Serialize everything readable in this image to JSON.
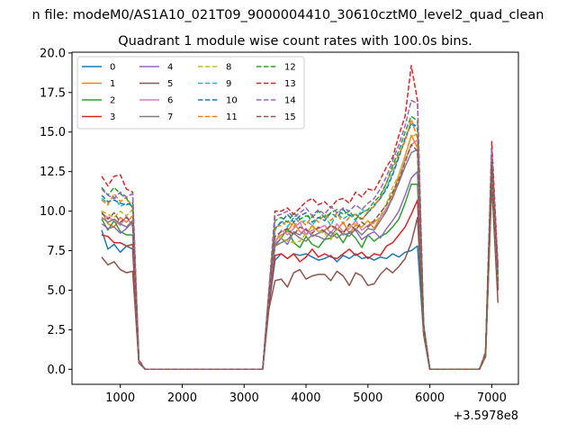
{
  "figure": {
    "suptitle": "n file: modeM0/AS1A10_021T09_9000004410_30610cztM0_level2_quad_clean",
    "axis_offset_label": "+3.5978e8"
  },
  "chart_data": {
    "type": "line",
    "title": "Quadrant 1 module wise count rates with 100.0s bins.",
    "xlabel": "",
    "ylabel": "",
    "xlim": [
      220,
      7430
    ],
    "ylim": [
      -0.95,
      20.05
    ],
    "x_offset": 359780000,
    "x_ticks": [
      1000,
      2000,
      3000,
      4000,
      5000,
      6000,
      7000
    ],
    "x_tick_labels": [
      "1000",
      "2000",
      "3000",
      "4000",
      "5000",
      "6000",
      "7000"
    ],
    "y_ticks": [
      0.0,
      2.5,
      5.0,
      7.5,
      10.0,
      12.5,
      15.0,
      17.5,
      20.0
    ],
    "y_tick_labels": [
      "0.0",
      "2.5",
      "5.0",
      "7.5",
      "10.0",
      "12.5",
      "15.0",
      "17.5",
      "20.0"
    ],
    "grid": false,
    "legend": {
      "placement": "top-left",
      "columns": 4
    },
    "x": [
      700,
      800,
      900,
      1000,
      1100,
      1200,
      1300,
      1400,
      1500,
      1600,
      1700,
      1800,
      1900,
      2000,
      2100,
      2200,
      2300,
      2400,
      2500,
      2600,
      2700,
      2800,
      2900,
      3000,
      3100,
      3200,
      3300,
      3400,
      3500,
      3600,
      3700,
      3800,
      3900,
      4000,
      4100,
      4200,
      4300,
      4400,
      4500,
      4600,
      4700,
      4800,
      4900,
      5000,
      5100,
      5200,
      5300,
      5400,
      5500,
      5600,
      5700,
      5800,
      5900,
      6000,
      6100,
      6200,
      6300,
      6400,
      6500,
      6600,
      6700,
      6800,
      6900,
      7000,
      7100
    ],
    "series": [
      {
        "name": "0",
        "color": "#1f77b4",
        "dash": "solid",
        "values": [
          8.8,
          7.6,
          7.9,
          7.4,
          7.8,
          7.6,
          0.5,
          0,
          0,
          0,
          0,
          0,
          0,
          0,
          0,
          0,
          0,
          0,
          0,
          0,
          0,
          0,
          0,
          0,
          0,
          0,
          0,
          4.0,
          6.9,
          7.3,
          7.0,
          7.3,
          7.2,
          7.3,
          7.1,
          6.9,
          7.0,
          7.2,
          6.8,
          7.2,
          7.0,
          7.3,
          7.0,
          7.1,
          6.9,
          7.1,
          7.0,
          7.3,
          7.1,
          7.4,
          7.5,
          7.8,
          2.2,
          0,
          0,
          0,
          0,
          0,
          0,
          0,
          0,
          0,
          0.8,
          12.1,
          5.0
        ]
      },
      {
        "name": "1",
        "color": "#ff7f0e",
        "dash": "solid",
        "values": [
          10.0,
          9.2,
          9.0,
          9.6,
          9.3,
          9.7,
          0.5,
          0,
          0,
          0,
          0,
          0,
          0,
          0,
          0,
          0,
          0,
          0,
          0,
          0,
          0,
          0,
          0,
          0,
          0,
          0,
          0,
          4.6,
          8.1,
          8.5,
          8.7,
          9.3,
          8.7,
          8.5,
          9.1,
          8.7,
          8.8,
          9.1,
          8.8,
          9.3,
          8.6,
          9.1,
          9.0,
          9.4,
          8.9,
          9.6,
          10.1,
          11.0,
          12.3,
          13.5,
          14.8,
          14.0,
          2.6,
          0,
          0,
          0,
          0,
          0,
          0,
          0,
          0,
          0,
          0.9,
          12.8,
          5.6
        ]
      },
      {
        "name": "2",
        "color": "#2ca02c",
        "dash": "solid",
        "values": [
          9.5,
          8.8,
          9.4,
          8.7,
          8.5,
          8.5,
          0.5,
          0,
          0,
          0,
          0,
          0,
          0,
          0,
          0,
          0,
          0,
          0,
          0,
          0,
          0,
          0,
          0,
          0,
          0,
          0,
          0,
          4.4,
          7.8,
          8.3,
          8.9,
          8.0,
          7.7,
          8.4,
          7.9,
          7.7,
          8.2,
          8.3,
          8.6,
          8.0,
          8.7,
          8.3,
          7.7,
          8.5,
          8.1,
          8.4,
          8.6,
          9.0,
          9.5,
          10.5,
          11.7,
          11.7,
          2.5,
          0,
          0,
          0,
          0,
          0,
          0,
          0,
          0,
          0,
          0.9,
          12.4,
          5.3
        ]
      },
      {
        "name": "3",
        "color": "#d62728",
        "dash": "solid",
        "values": [
          8.5,
          8.4,
          8.0,
          8.0,
          7.8,
          7.9,
          0.5,
          0,
          0,
          0,
          0,
          0,
          0,
          0,
          0,
          0,
          0,
          0,
          0,
          0,
          0,
          0,
          0,
          0,
          0,
          0,
          0,
          4.2,
          7.2,
          7.3,
          7.0,
          7.3,
          6.8,
          7.1,
          7.6,
          7.1,
          7.3,
          7.1,
          7.0,
          7.3,
          7.6,
          7.2,
          7.4,
          7.0,
          7.3,
          7.2,
          7.8,
          8.0,
          8.5,
          9.0,
          9.8,
          10.7,
          2.4,
          0,
          0,
          0,
          0,
          0,
          0,
          0,
          0,
          0,
          0.8,
          12.0,
          5.0
        ]
      },
      {
        "name": "4",
        "color": "#9467bd",
        "dash": "solid",
        "values": [
          9.2,
          8.9,
          9.0,
          8.6,
          8.9,
          9.3,
          0.5,
          0,
          0,
          0,
          0,
          0,
          0,
          0,
          0,
          0,
          0,
          0,
          0,
          0,
          0,
          0,
          0,
          0,
          0,
          0,
          0,
          4.5,
          7.9,
          8.3,
          7.9,
          8.7,
          8.5,
          8.9,
          8.4,
          8.6,
          8.7,
          8.4,
          8.9,
          8.5,
          8.6,
          8.8,
          8.2,
          8.5,
          8.7,
          8.3,
          8.9,
          9.4,
          10.0,
          11.0,
          12.1,
          12.5,
          2.5,
          0,
          0,
          0,
          0,
          0,
          0,
          0,
          0,
          0,
          0.9,
          12.6,
          5.5
        ]
      },
      {
        "name": "5",
        "color": "#8c564b",
        "dash": "solid",
        "values": [
          7.1,
          6.6,
          6.8,
          6.3,
          6.1,
          6.2,
          0.4,
          0,
          0,
          0,
          0,
          0,
          0,
          0,
          0,
          0,
          0,
          0,
          0,
          0,
          0,
          0,
          0,
          0,
          0,
          0,
          0,
          3.8,
          5.6,
          5.7,
          5.2,
          6.1,
          6.3,
          5.7,
          5.9,
          6.0,
          6.0,
          5.6,
          6.2,
          5.9,
          5.3,
          6.1,
          5.9,
          5.3,
          5.4,
          6.0,
          6.4,
          6.1,
          6.5,
          7.0,
          8.0,
          9.6,
          2.2,
          0,
          0,
          0,
          0,
          0,
          0,
          0,
          0,
          0,
          0.8,
          11.7,
          4.2
        ]
      },
      {
        "name": "6",
        "color": "#e377c2",
        "dash": "solid",
        "values": [
          9.8,
          9.6,
          9.4,
          9.1,
          9.7,
          9.0,
          0.5,
          0,
          0,
          0,
          0,
          0,
          0,
          0,
          0,
          0,
          0,
          0,
          0,
          0,
          0,
          0,
          0,
          0,
          0,
          0,
          0,
          4.6,
          8.0,
          8.8,
          8.5,
          8.9,
          9.3,
          8.5,
          8.8,
          8.9,
          9.1,
          8.6,
          9.2,
          8.7,
          8.9,
          9.4,
          8.8,
          9.1,
          9.3,
          9.6,
          10.2,
          10.8,
          11.9,
          13.2,
          14.2,
          14.5,
          2.6,
          0,
          0,
          0,
          0,
          0,
          0,
          0,
          0,
          0,
          0.9,
          13.5,
          5.7
        ]
      },
      {
        "name": "7",
        "color": "#7f7f7f",
        "dash": "solid",
        "values": [
          9.6,
          9.3,
          9.5,
          9.2,
          9.0,
          9.4,
          0.5,
          0,
          0,
          0,
          0,
          0,
          0,
          0,
          0,
          0,
          0,
          0,
          0,
          0,
          0,
          0,
          0,
          0,
          0,
          0,
          0,
          4.5,
          7.8,
          8.0,
          8.2,
          8.6,
          8.3,
          8.1,
          8.5,
          8.4,
          8.2,
          8.7,
          8.3,
          8.6,
          8.4,
          8.9,
          8.5,
          8.9,
          8.8,
          9.4,
          10.0,
          10.9,
          11.8,
          12.8,
          13.7,
          13.9,
          2.6,
          0,
          0,
          0,
          0,
          0,
          0,
          0,
          0,
          0,
          0.9,
          13.0,
          5.4
        ]
      },
      {
        "name": "8",
        "color": "#bcbd22",
        "dash": "dashed",
        "values": [
          10.0,
          9.8,
          9.6,
          10.0,
          9.7,
          10.1,
          0.5,
          0,
          0,
          0,
          0,
          0,
          0,
          0,
          0,
          0,
          0,
          0,
          0,
          0,
          0,
          0,
          0,
          0,
          0,
          0,
          0,
          4.7,
          8.4,
          8.3,
          8.1,
          8.0,
          8.1,
          8.6,
          9.0,
          8.7,
          8.6,
          8.2,
          8.9,
          8.6,
          9.1,
          9.2,
          9.0,
          9.4,
          9.2,
          9.7,
          10.5,
          11.5,
          12.3,
          13.5,
          14.7,
          14.9,
          2.6,
          0,
          0,
          0,
          0,
          0,
          0,
          0,
          0,
          0,
          0.9,
          13.0,
          5.8
        ]
      },
      {
        "name": "9",
        "color": "#17becf",
        "dash": "dashed",
        "values": [
          10.8,
          10.5,
          10.9,
          10.3,
          10.5,
          10.3,
          0.5,
          0,
          0,
          0,
          0,
          0,
          0,
          0,
          0,
          0,
          0,
          0,
          0,
          0,
          0,
          0,
          0,
          0,
          0,
          0,
          0,
          4.7,
          8.8,
          9.4,
          9.0,
          9.6,
          9.3,
          9.4,
          9.1,
          9.6,
          9.7,
          9.1,
          9.9,
          9.5,
          9.8,
          9.4,
          10.1,
          9.9,
          10.3,
          10.8,
          11.5,
          12.4,
          13.5,
          14.5,
          15.5,
          15.2,
          2.7,
          0,
          0,
          0,
          0,
          0,
          0,
          0,
          0,
          0,
          1.0,
          13.8,
          6.2
        ]
      },
      {
        "name": "10",
        "color": "#1f77b4",
        "dash": "dashed",
        "values": [
          11.0,
          10.6,
          10.7,
          10.5,
          10.4,
          10.6,
          0.5,
          0,
          0,
          0,
          0,
          0,
          0,
          0,
          0,
          0,
          0,
          0,
          0,
          0,
          0,
          0,
          0,
          0,
          0,
          0,
          0,
          4.8,
          8.9,
          9.3,
          9.8,
          9.3,
          9.7,
          9.9,
          9.3,
          9.6,
          9.4,
          9.9,
          9.6,
          10.1,
          9.7,
          9.8,
          9.5,
          9.9,
          10.4,
          10.8,
          11.4,
          12.3,
          13.4,
          14.6,
          15.6,
          15.3,
          2.7,
          0,
          0,
          0,
          0,
          0,
          0,
          0,
          0,
          0,
          1.0,
          13.6,
          6.4
        ]
      },
      {
        "name": "11",
        "color": "#ff7f0e",
        "dash": "dashed",
        "values": [
          10.7,
          10.4,
          11.1,
          10.6,
          10.9,
          10.2,
          0.5,
          0,
          0,
          0,
          0,
          0,
          0,
          0,
          0,
          0,
          0,
          0,
          0,
          0,
          0,
          0,
          0,
          0,
          0,
          0,
          0,
          4.8,
          9.0,
          9.1,
          9.4,
          9.0,
          9.5,
          9.1,
          9.7,
          9.3,
          9.8,
          9.4,
          9.9,
          9.2,
          9.6,
          9.8,
          9.4,
          10.0,
          10.3,
          10.9,
          11.8,
          12.7,
          13.6,
          14.4,
          15.8,
          14.6,
          2.7,
          0,
          0,
          0,
          0,
          0,
          0,
          0,
          0,
          0,
          1.0,
          13.4,
          6.1
        ]
      },
      {
        "name": "12",
        "color": "#2ca02c",
        "dash": "dashed",
        "values": [
          11.5,
          11.0,
          11.5,
          11.1,
          10.8,
          10.2,
          0.5,
          0,
          0,
          0,
          0,
          0,
          0,
          0,
          0,
          0,
          0,
          0,
          0,
          0,
          0,
          0,
          0,
          0,
          0,
          0,
          0,
          4.9,
          9.4,
          9.6,
          9.3,
          9.9,
          9.5,
          9.7,
          9.6,
          10.0,
          9.6,
          9.9,
          10.1,
          9.8,
          10.0,
          9.5,
          9.9,
          10.1,
          10.6,
          11.0,
          11.8,
          12.9,
          13.8,
          15.0,
          16.0,
          15.7,
          2.8,
          0,
          0,
          0,
          0,
          0,
          0,
          0,
          0,
          0,
          1.0,
          13.2,
          6.0
        ]
      },
      {
        "name": "13",
        "color": "#d62728",
        "dash": "dashed",
        "values": [
          12.2,
          11.6,
          12.2,
          12.3,
          11.4,
          11.2,
          0.6,
          0,
          0,
          0,
          0,
          0,
          0,
          0,
          0,
          0,
          0,
          0,
          0,
          0,
          0,
          0,
          0,
          0,
          0,
          0,
          0,
          5.0,
          10.0,
          10.0,
          10.2,
          9.8,
          10.2,
          10.6,
          10.8,
          10.4,
          10.6,
          10.2,
          10.7,
          10.8,
          10.5,
          11.2,
          10.9,
          11.4,
          11.3,
          12.0,
          12.8,
          13.4,
          14.8,
          16.0,
          19.2,
          17.0,
          2.9,
          0,
          0,
          0,
          0,
          0,
          0,
          0,
          0,
          0,
          1.1,
          14.4,
          6.5
        ]
      },
      {
        "name": "14",
        "color": "#9467bd",
        "dash": "dashed",
        "values": [
          11.4,
          11.0,
          10.8,
          11.2,
          10.9,
          11.1,
          0.5,
          0,
          0,
          0,
          0,
          0,
          0,
          0,
          0,
          0,
          0,
          0,
          0,
          0,
          0,
          0,
          0,
          0,
          0,
          0,
          0,
          4.9,
          9.7,
          9.8,
          10.0,
          9.6,
          9.9,
          10.2,
          9.7,
          10.1,
          9.8,
          10.3,
          9.9,
          10.2,
          10.0,
          10.4,
          10.1,
          10.5,
          10.8,
          11.4,
          12.2,
          13.2,
          14.2,
          15.4,
          17.0,
          16.8,
          2.8,
          0,
          0,
          0,
          0,
          0,
          0,
          0,
          0,
          0,
          1.0,
          14.0,
          6.3
        ]
      },
      {
        "name": "15",
        "color": "#8c564b",
        "dash": "dashed",
        "values": [
          9.9,
          9.5,
          9.9,
          9.3,
          9.6,
          9.2,
          0.5,
          0,
          0,
          0,
          0,
          0,
          0,
          0,
          0,
          0,
          0,
          0,
          0,
          0,
          0,
          0,
          0,
          0,
          0,
          0,
          0,
          4.6,
          8.4,
          8.7,
          8.9,
          8.5,
          9.0,
          8.8,
          8.6,
          9.0,
          8.7,
          9.1,
          8.9,
          8.6,
          9.2,
          8.8,
          9.3,
          9.0,
          9.4,
          9.9,
          10.4,
          11.2,
          12.0,
          13.1,
          14.2,
          13.8,
          2.6,
          0,
          0,
          0,
          0,
          0,
          0,
          0,
          0,
          0,
          0.9,
          12.9,
          5.6
        ]
      }
    ]
  }
}
